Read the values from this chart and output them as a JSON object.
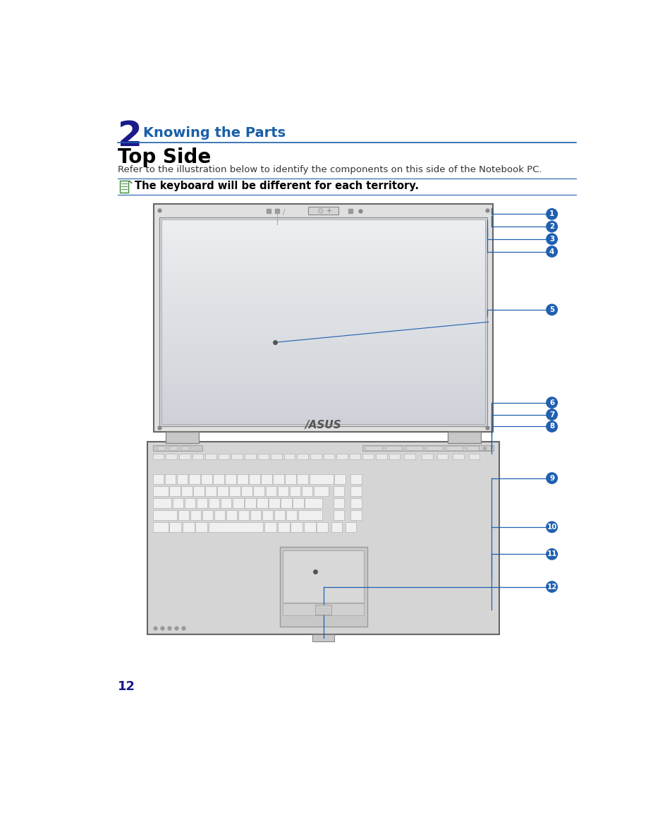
{
  "bg_color": "#ffffff",
  "chapter_num": "2",
  "chapter_num_color": "#1a1a8c",
  "chapter_title": "Knowing the Parts",
  "chapter_title_color": "#1a5fa8",
  "section_title": "Top Side",
  "section_title_color": "#000000",
  "body_text": "Refer to the illustration below to identify the components on this side of the Notebook PC.",
  "note_text": "The keyboard will be different for each territory.",
  "page_num": "12",
  "page_num_color": "#1a1a8c",
  "line_color": "#1a5fa8",
  "callout_color": "#2060b0",
  "callout_text_color": "#ffffff",
  "arrow_color": "#2060b0",
  "note_border_color": "#2060b0",
  "screen_outer_color": "#aaaaaa",
  "screen_bezel_color": "#cccccc",
  "screen_display_top": "#e8eaec",
  "screen_display_bottom": "#c8ccd2",
  "keyboard_base_color": "#d8d8d8",
  "key_face_color": "#f5f5f5",
  "key_edge_color": "#999999",
  "touchpad_color": "#e0e0e0",
  "hinge_color": "#c0c0c0"
}
